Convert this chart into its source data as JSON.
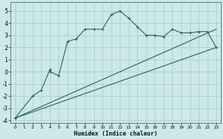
{
  "xlabel": "Humidex (Indice chaleur)",
  "background_color": "#cce8e8",
  "grid_color": "#aacccc",
  "line_color": "#2e6b60",
  "xlim": [
    -0.5,
    23.5
  ],
  "ylim": [
    -4.2,
    5.7
  ],
  "xticks": [
    0,
    1,
    2,
    3,
    4,
    5,
    6,
    7,
    8,
    9,
    10,
    11,
    12,
    13,
    14,
    15,
    16,
    17,
    18,
    19,
    20,
    21,
    22,
    23
  ],
  "yticks": [
    -4,
    -3,
    -2,
    -1,
    0,
    1,
    2,
    3,
    4,
    5
  ],
  "series_main_x": [
    0,
    2,
    3,
    4,
    4,
    5,
    6,
    7,
    8,
    9,
    10,
    11,
    12,
    13,
    14,
    15,
    16,
    17,
    18,
    19,
    20,
    21,
    22,
    23
  ],
  "series_main_y": [
    -3.8,
    -2.0,
    -1.5,
    0.2,
    0.0,
    -0.3,
    2.5,
    2.7,
    3.5,
    3.5,
    3.5,
    4.7,
    5.0,
    4.4,
    3.7,
    3.0,
    3.0,
    2.9,
    3.5,
    3.2,
    3.2,
    3.3,
    3.3,
    2.0
  ],
  "line1_x": [
    0,
    23
  ],
  "line1_y": [
    -3.8,
    2.0
  ],
  "line2_x": [
    0,
    23
  ],
  "line2_y": [
    -3.8,
    3.5
  ]
}
